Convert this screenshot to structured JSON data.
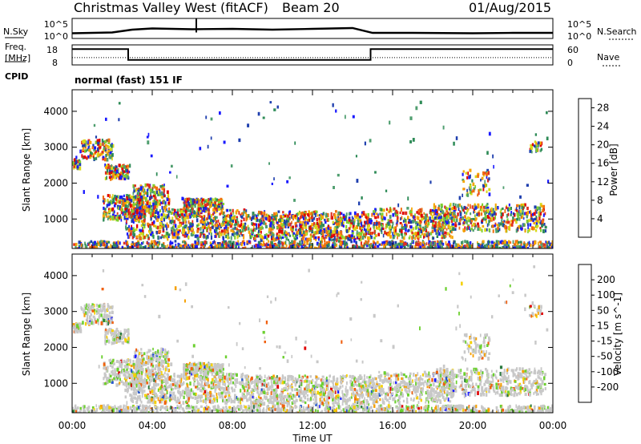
{
  "header": {
    "station": "Christmas Valley West (fitACF)",
    "beam": "Beam 20",
    "date": "01/Aug/2015"
  },
  "left_labels": {
    "nsky": "N.Sky",
    "freq_line1": "Freq.",
    "freq_line2": "[MHz]",
    "cpid": "CPID"
  },
  "right_labels": {
    "nsearch": "N.Search",
    "nave": "Nave"
  },
  "cpid_text": "normal (fast) 151 IF",
  "time_axis": {
    "label": "Time UT",
    "ticks": [
      "00:00",
      "04:00",
      "08:00",
      "12:00",
      "16:00",
      "20:00",
      "00:00"
    ]
  },
  "colors": {
    "power": [
      "#1a1aff",
      "#1f3fae",
      "#2e8b57",
      "#4f9e6f",
      "#7fcf2f",
      "#d8d81a",
      "#f5a500",
      "#f07010",
      "#e03020",
      "#e00000"
    ],
    "velocity": [
      "#1a1aff",
      "#2255cc",
      "#2a7a40",
      "#6cd030",
      "#c8c8c8",
      "#f5d000",
      "#f5a000",
      "#f06010",
      "#e00000"
    ]
  },
  "chart_data": [
    {
      "type": "line",
      "name": "noise-panel",
      "left_axis": {
        "label": "N.Sky",
        "ticks": [
          "10^5",
          "10^0"
        ]
      },
      "right_axis": {
        "label": "N.Search",
        "ticks": [
          "10^5",
          "10^0"
        ]
      },
      "series": [
        {
          "x": [
            0,
            2,
            3,
            4,
            6,
            8,
            10,
            12,
            14,
            15,
            17,
            20,
            22,
            24
          ],
          "y": [
            1.3,
            1.5,
            2.2,
            2.5,
            2.3,
            2.4,
            2.2,
            2.4,
            2.6,
            1.4,
            1.4,
            1.3,
            1.4,
            1.4
          ]
        }
      ],
      "spike": {
        "x": 6.2,
        "y": 5
      }
    },
    {
      "type": "line",
      "name": "freq-nave-panel",
      "left_axis": {
        "label": "Freq. [MHz]",
        "ticks": [
          "18",
          "8"
        ]
      },
      "right_axis": {
        "label": "Nave",
        "ticks": [
          "60",
          "0"
        ]
      },
      "series": [
        {
          "name": "Freq.",
          "x": [
            0,
            2.8,
            2.8,
            14.9,
            14.9,
            24
          ],
          "y": [
            15.5,
            15.5,
            9,
            9,
            15.5,
            15.5
          ]
        },
        {
          "name": "Nave",
          "x": [
            0,
            24
          ],
          "y": [
            22,
            22
          ]
        }
      ]
    },
    {
      "type": "heatmap",
      "name": "power-panel",
      "ylabel": "Slant Range [km]",
      "y_ticks": [
        "1000",
        "2000",
        "3000",
        "4000"
      ],
      "ylim": [
        180,
        4600
      ],
      "xlim": [
        0,
        24
      ],
      "colorbar": {
        "label": "Power [dB]",
        "ticks": [
          "4",
          "8",
          "12",
          "16",
          "20",
          "24",
          "28"
        ]
      }
    },
    {
      "type": "heatmap",
      "name": "velocity-panel",
      "ylabel": "Slant Range [km]",
      "y_ticks": [
        "1000",
        "2000",
        "3000",
        "4000"
      ],
      "ylim": [
        180,
        4600
      ],
      "xlim": [
        0,
        24
      ],
      "colorbar": {
        "label": "Velocity [m s^-1]",
        "ticks": [
          "200",
          "100",
          "50",
          "15",
          "-15",
          "-50",
          "-100",
          "-200"
        ]
      }
    }
  ]
}
